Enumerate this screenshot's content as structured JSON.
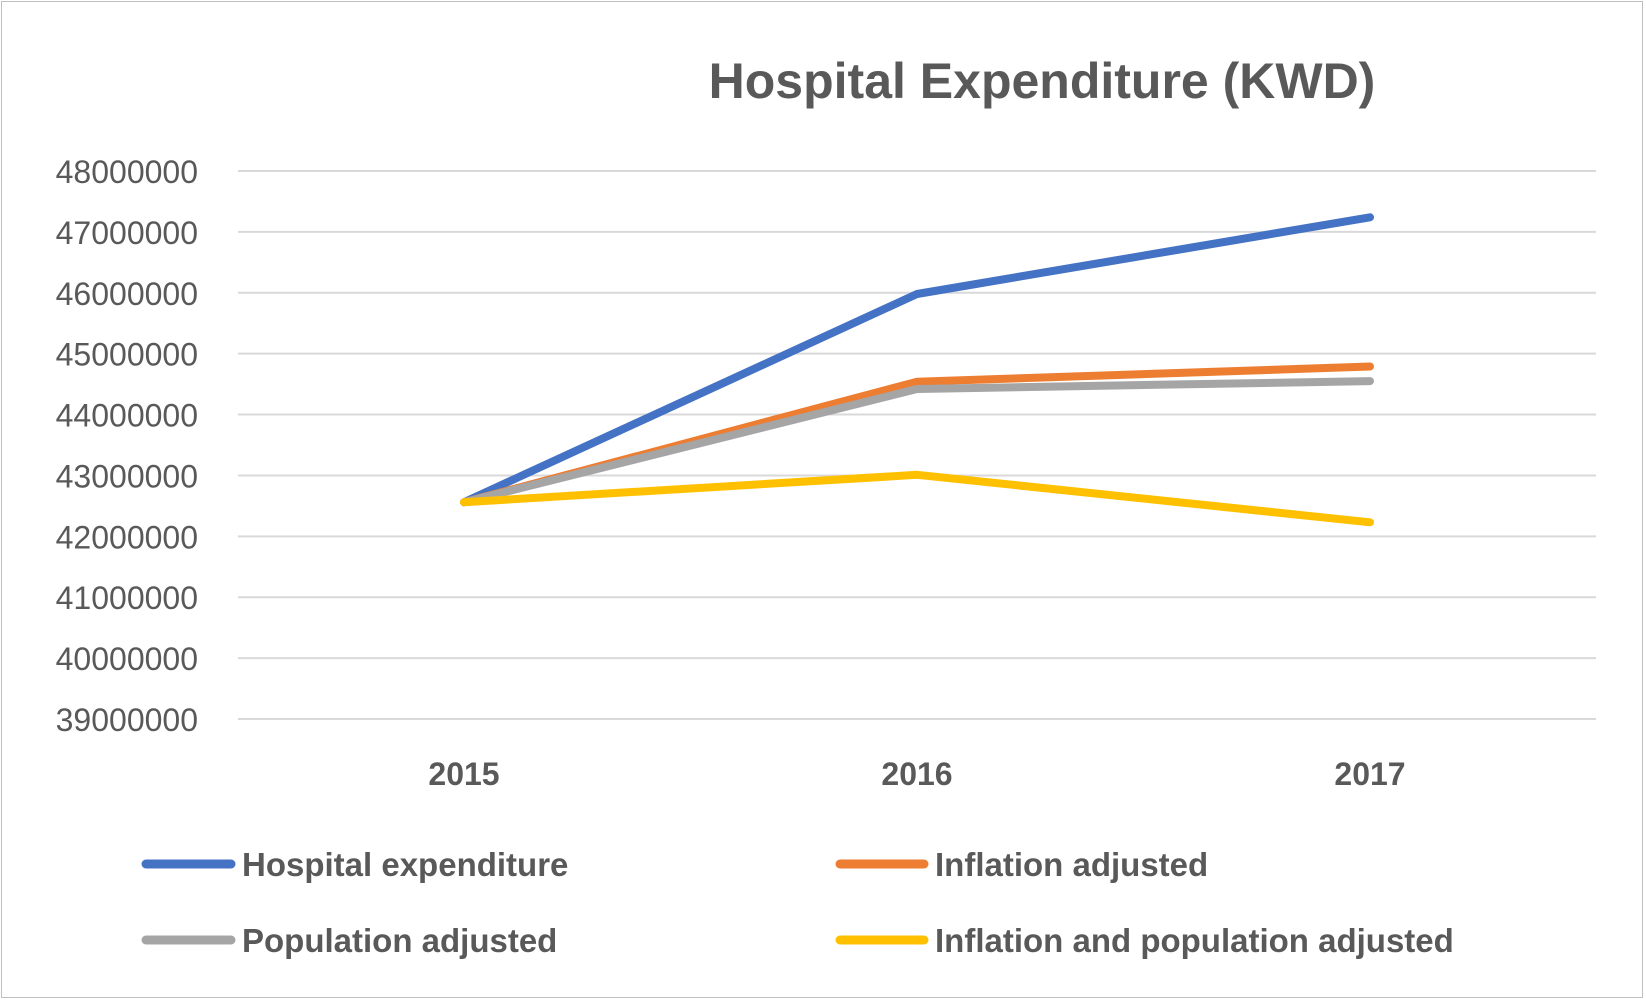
{
  "chart_data": {
    "type": "line",
    "title": "Hospital Expenditure (KWD)",
    "xlabel": "",
    "ylabel": "",
    "categories": [
      "2015",
      "2016",
      "2017"
    ],
    "ylim": [
      39000000,
      48000000
    ],
    "yticks": [
      39000000,
      40000000,
      41000000,
      42000000,
      43000000,
      44000000,
      45000000,
      46000000,
      47000000,
      48000000
    ],
    "ytick_labels": [
      "39000000",
      "40000000",
      "41000000",
      "42000000",
      "43000000",
      "44000000",
      "45000000",
      "46000000",
      "47000000",
      "48000000"
    ],
    "grid": true,
    "legend_position": "bottom",
    "series": [
      {
        "name": "Hospital expenditure",
        "color": "#4472c4",
        "values": [
          42560000,
          45980000,
          47240000
        ]
      },
      {
        "name": "Inflation adjusted",
        "color": "#ed7d31",
        "values": [
          42560000,
          44540000,
          44790000
        ]
      },
      {
        "name": "Population adjusted",
        "color": "#a5a5a5",
        "values": [
          42560000,
          44420000,
          44550000
        ]
      },
      {
        "name": "Inflation and population adjusted",
        "color": "#ffc000",
        "values": [
          42560000,
          43010000,
          42230000
        ]
      }
    ]
  }
}
